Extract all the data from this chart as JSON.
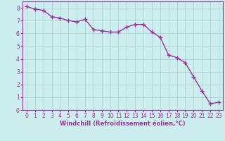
{
  "x": [
    0,
    1,
    2,
    3,
    4,
    5,
    6,
    7,
    8,
    9,
    10,
    11,
    12,
    13,
    14,
    15,
    16,
    17,
    18,
    19,
    20,
    21,
    22,
    23
  ],
  "y": [
    8.1,
    7.9,
    7.8,
    7.3,
    7.2,
    7.0,
    6.9,
    7.1,
    6.3,
    6.2,
    6.1,
    6.1,
    6.5,
    6.7,
    6.7,
    6.1,
    5.7,
    4.3,
    4.1,
    3.7,
    2.6,
    1.5,
    0.5,
    0.6
  ],
  "line_color": "#993399",
  "marker": "+",
  "marker_size": 4.0,
  "line_width": 1.0,
  "bg_color": "#cceeee",
  "grid_color": "#aacccc",
  "xlabel": "Windchill (Refroidissement éolien,°C)",
  "xlabel_color": "#993399",
  "tick_color": "#993399",
  "ylim": [
    0,
    8.5
  ],
  "xlim": [
    -0.5,
    23.5
  ],
  "yticks": [
    0,
    1,
    2,
    3,
    4,
    5,
    6,
    7,
    8
  ],
  "xticks": [
    0,
    1,
    2,
    3,
    4,
    5,
    6,
    7,
    8,
    9,
    10,
    11,
    12,
    13,
    14,
    15,
    16,
    17,
    18,
    19,
    20,
    21,
    22,
    23
  ],
  "xtick_labels": [
    "0",
    "1",
    "2",
    "3",
    "4",
    "5",
    "6",
    "7",
    "8",
    "9",
    "10",
    "11",
    "12",
    "13",
    "14",
    "15",
    "16",
    "17",
    "18",
    "19",
    "20",
    "21",
    "22",
    "23"
  ],
  "ytick_labels": [
    "0",
    "1",
    "2",
    "3",
    "4",
    "5",
    "6",
    "7",
    "8"
  ],
  "tick_fontsize": 5.5,
  "xlabel_fontsize": 6.0,
  "figsize": [
    3.2,
    2.0
  ],
  "dpi": 100
}
